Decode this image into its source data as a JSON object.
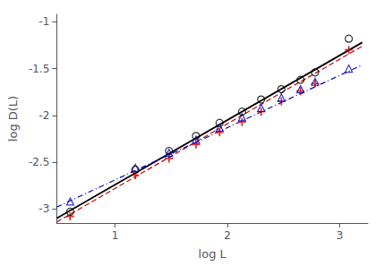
{
  "chart_data": {
    "type": "scatter",
    "xlabel": "log L",
    "ylabel": "log D(L)",
    "xlim": [
      0.48,
      3.25
    ],
    "ylim": [
      -3.15,
      -0.92
    ],
    "xticks": [
      1,
      2,
      3
    ],
    "yticks": [
      -3,
      -2.5,
      -2,
      -1.5,
      -1
    ],
    "grid": false,
    "series": [
      {
        "type": "line",
        "line_style": "solid",
        "color": "#000000",
        "x": [
          0.48,
          3.2
        ],
        "values": [
          -3.1,
          -1.22
        ]
      },
      {
        "type": "line",
        "line_style": "dashed",
        "color": "#cc0000",
        "x": [
          0.48,
          3.2
        ],
        "values": [
          -3.14,
          -1.26
        ]
      },
      {
        "type": "line",
        "line_style": "dashdot",
        "color": "#0000cc",
        "x": [
          0.48,
          3.2
        ],
        "values": [
          -2.98,
          -1.46
        ]
      },
      {
        "type": "scatter",
        "marker": "plus",
        "color": "#cc0000",
        "x": [
          0.6,
          1.18,
          1.48,
          1.72,
          1.93,
          2.13,
          2.3,
          2.48,
          2.65,
          2.78,
          3.08
        ],
        "values": [
          -3.08,
          -2.64,
          -2.46,
          -2.31,
          -2.18,
          -2.07,
          -1.96,
          -1.85,
          -1.74,
          -1.66,
          -1.3
        ]
      },
      {
        "type": "scatter",
        "marker": "triangle",
        "color": "#0000cc",
        "x": [
          0.6,
          1.18,
          1.48,
          1.72,
          1.93,
          2.13,
          2.3,
          2.48,
          2.65,
          2.78,
          3.08
        ],
        "values": [
          -2.92,
          -2.56,
          -2.4,
          -2.26,
          -2.13,
          -2.02,
          -1.92,
          -1.81,
          -1.72,
          -1.64,
          -1.5
        ]
      },
      {
        "type": "scatter",
        "marker": "circle",
        "color": "#000000",
        "x": [
          0.6,
          1.18,
          1.48,
          1.72,
          1.93,
          2.13,
          2.3,
          2.48,
          2.65,
          2.78,
          3.08
        ],
        "values": [
          -3.03,
          -2.58,
          -2.38,
          -2.22,
          -2.08,
          -1.96,
          -1.83,
          -1.72,
          -1.62,
          -1.54,
          -1.18
        ]
      }
    ]
  }
}
